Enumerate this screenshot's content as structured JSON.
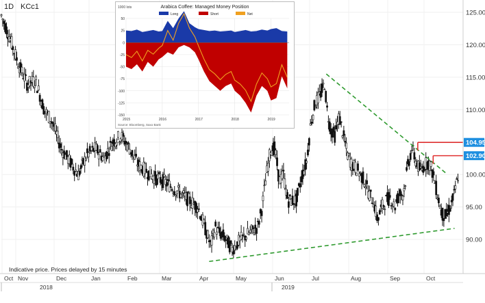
{
  "header": {
    "timeframe": "1D",
    "symbol": "KCc1"
  },
  "footer_note": "Indicative price. Prices delayed by 15 minutes",
  "chart_data": [
    {
      "type": "candlestick",
      "title": "",
      "price_ticks": [
        "125.00",
        "120.00",
        "115.00",
        "110.00",
        "105.00",
        "100.00",
        "95.00",
        "90.00"
      ],
      "ylim": [
        84.5,
        126.5
      ],
      "months": [
        "Oct",
        "Nov",
        "Dec",
        "Jan",
        "Feb",
        "Mar",
        "Apr",
        "May",
        "Jun",
        "Jul",
        "Aug",
        "Sep",
        "Oct"
      ],
      "years": [
        "2018",
        "2019"
      ],
      "markers": [
        {
          "label": "104.95",
          "value": 104.95,
          "color": "#1e8fe0"
        },
        {
          "label": "102.90",
          "value": 102.9,
          "color": "#1e8fe0"
        }
      ],
      "trendlines": [
        {
          "name": "falling-resistance",
          "style": "dashed",
          "color": "#2e9a2e",
          "from": {
            "day": 380,
            "price": 115.5
          },
          "to": {
            "day": 520,
            "price": 100.2
          }
        },
        {
          "name": "rising-support",
          "style": "dashed",
          "color": "#2e9a2e",
          "from": {
            "day": 243,
            "price": 86.6
          },
          "to": {
            "day": 530,
            "price": 91.7
          }
        }
      ],
      "resistance_levels": [
        {
          "value": 104.95,
          "color": "#e03030"
        },
        {
          "value": 102.9,
          "color": "#e03030"
        }
      ],
      "price_path": [
        [
          0,
          124.5
        ],
        [
          10,
          121
        ],
        [
          20,
          117
        ],
        [
          30,
          114
        ],
        [
          40,
          114.5
        ],
        [
          50,
          110
        ],
        [
          60,
          108
        ],
        [
          70,
          104
        ],
        [
          80,
          102
        ],
        [
          90,
          100
        ],
        [
          100,
          103
        ],
        [
          110,
          104
        ],
        [
          120,
          102.5
        ],
        [
          130,
          105
        ],
        [
          140,
          106
        ],
        [
          150,
          104
        ],
        [
          160,
          101.5
        ],
        [
          170,
          100.5
        ],
        [
          180,
          99.5
        ],
        [
          190,
          99
        ],
        [
          200,
          98
        ],
        [
          210,
          97
        ],
        [
          220,
          96
        ],
        [
          230,
          95
        ],
        [
          240,
          91
        ],
        [
          245,
          89
        ],
        [
          250,
          92
        ],
        [
          255,
          91
        ],
        [
          260,
          90.5
        ],
        [
          270,
          88.5
        ],
        [
          280,
          90
        ],
        [
          290,
          91
        ],
        [
          300,
          92
        ],
        [
          305,
          95
        ],
        [
          310,
          100
        ],
        [
          315,
          104
        ],
        [
          320,
          104
        ],
        [
          325,
          99
        ],
        [
          330,
          100
        ],
        [
          335,
          96
        ],
        [
          345,
          96
        ],
        [
          352,
          100
        ],
        [
          357,
          102
        ],
        [
          362,
          108
        ],
        [
          367,
          111
        ],
        [
          372,
          112
        ],
        [
          375,
          113
        ],
        [
          378,
          114
        ],
        [
          381,
          110
        ],
        [
          385,
          107
        ],
        [
          390,
          106
        ],
        [
          395,
          109
        ],
        [
          400,
          106
        ],
        [
          405,
          103
        ],
        [
          410,
          101.5
        ],
        [
          415,
          101
        ],
        [
          420,
          100
        ],
        [
          425,
          99
        ],
        [
          430,
          97
        ],
        [
          435,
          96
        ],
        [
          440,
          93
        ],
        [
          445,
          95
        ],
        [
          450,
          96
        ],
        [
          455,
          96.5
        ],
        [
          460,
          95
        ],
        [
          465,
          97
        ],
        [
          470,
          97
        ],
        [
          475,
          101
        ],
        [
          480,
          104
        ],
        [
          485,
          102
        ],
        [
          490,
          100.5
        ],
        [
          495,
          101.5
        ],
        [
          500,
          102
        ],
        [
          505,
          100
        ],
        [
          510,
          97
        ],
        [
          515,
          94
        ],
        [
          520,
          93.5
        ],
        [
          525,
          95
        ],
        [
          530,
          97
        ],
        [
          535,
          100.5
        ]
      ]
    },
    {
      "type": "area",
      "title": "Arabica Coffee: Managed Money Position",
      "ylabel": "1000 lots",
      "y_ticks": [
        50,
        25,
        0,
        -25,
        -50,
        -75,
        -100,
        -125,
        -150
      ],
      "x_ticks": [
        "2015",
        "2016",
        "2017",
        "2018",
        "2019"
      ],
      "series": [
        {
          "name": "Long",
          "color": "#1a3aa8",
          "x": [
            2015.0,
            2015.15,
            2015.3,
            2015.45,
            2015.6,
            2015.75,
            2015.9,
            2016.0,
            2016.15,
            2016.3,
            2016.45,
            2016.6,
            2016.75,
            2016.9,
            2017.0,
            2017.15,
            2017.3,
            2017.45,
            2017.6,
            2017.75,
            2017.9,
            2018.0,
            2018.15,
            2018.3,
            2018.45,
            2018.6,
            2018.75,
            2018.9,
            2019.0,
            2019.15,
            2019.3,
            2019.45
          ],
          "values": [
            25,
            24,
            27,
            22,
            24,
            26,
            23,
            24,
            45,
            30,
            50,
            65,
            40,
            32,
            28,
            26,
            24,
            25,
            23,
            24,
            25,
            22,
            24,
            26,
            23,
            24,
            27,
            25,
            28,
            30,
            24,
            23
          ]
        },
        {
          "name": "Short",
          "color": "#c00000",
          "x": [
            2015.0,
            2015.15,
            2015.3,
            2015.45,
            2015.6,
            2015.75,
            2015.9,
            2016.0,
            2016.15,
            2016.3,
            2016.45,
            2016.6,
            2016.75,
            2016.9,
            2017.0,
            2017.15,
            2017.3,
            2017.45,
            2017.6,
            2017.75,
            2017.9,
            2018.0,
            2018.15,
            2018.3,
            2018.45,
            2018.6,
            2018.75,
            2018.9,
            2019.0,
            2019.15,
            2019.3,
            2019.45
          ],
          "values": [
            -50,
            -55,
            -45,
            -60,
            -40,
            -50,
            -35,
            -30,
            -20,
            -25,
            -10,
            -5,
            -10,
            -20,
            -35,
            -60,
            -80,
            -90,
            -100,
            -90,
            -85,
            -100,
            -110,
            -125,
            -145,
            -110,
            -90,
            -100,
            -120,
            -115,
            -70,
            -95
          ]
        },
        {
          "name": "Net",
          "color": "#f0a020",
          "x": [
            2015.0,
            2015.15,
            2015.3,
            2015.45,
            2015.6,
            2015.75,
            2015.9,
            2016.0,
            2016.15,
            2016.3,
            2016.45,
            2016.6,
            2016.75,
            2016.9,
            2017.0,
            2017.15,
            2017.3,
            2017.45,
            2017.6,
            2017.75,
            2017.9,
            2018.0,
            2018.15,
            2018.3,
            2018.45,
            2018.6,
            2018.75,
            2018.9,
            2019.0,
            2019.15,
            2019.3,
            2019.45
          ],
          "values": [
            -25,
            -31,
            -18,
            -38,
            -16,
            -24,
            -12,
            -6,
            25,
            5,
            40,
            60,
            30,
            12,
            -7,
            -34,
            -56,
            -65,
            -77,
            -66,
            -60,
            -78,
            -86,
            -99,
            -122,
            -86,
            -63,
            -75,
            -92,
            -85,
            -46,
            -72
          ]
        }
      ],
      "source": "Source: Bloomberg, Saxo Bank"
    }
  ]
}
